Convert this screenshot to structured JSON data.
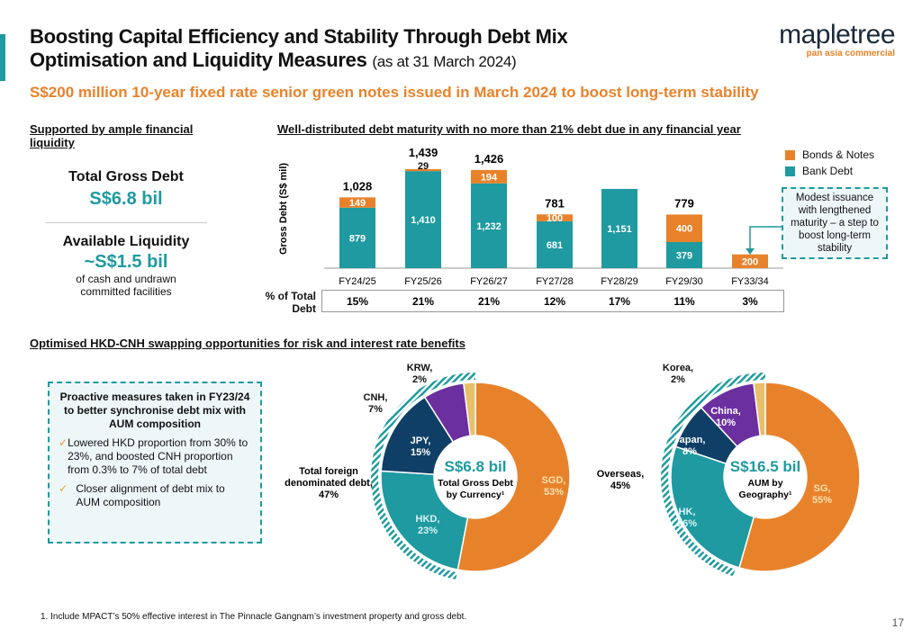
{
  "header": {
    "title_line1": "Boosting Capital Efficiency and Stability Through Debt Mix",
    "title_line2": "Optimisation and Liquidity Measures",
    "title_date": "(as at 31 March 2024)",
    "headline": "S$200 million 10-year fixed rate senior green notes issued in March 2024 to boost long-term stability"
  },
  "logo": {
    "name": "mapletree",
    "tagline": "pan asia commercial"
  },
  "liquidity": {
    "heading": "Supported by ample financial liquidity",
    "debt_label": "Total Gross Debt",
    "debt_value": "S$6.8 bil",
    "liq_label": "Available Liquidity",
    "liq_value": "~S$1.5 bil",
    "liq_note": "of cash and undrawn committed facilities"
  },
  "maturity": {
    "heading": "Well-distributed debt maturity with no more than 21% debt due in any financial year",
    "pct_label": "% of Total Debt",
    "callout": "Modest issuance with lengthened maturity – a step to boost long-term stability"
  },
  "swap": {
    "heading": "Optimised HKD-CNH swapping opportunities for risk and interest rate benefits",
    "box_title": "Proactive measures taken in FY23/24 to better synchronise debt mix with AUM composition",
    "bullets": [
      "Lowered HKD proportion from 30% to 23%, and boosted CNH proportion from 0.3% to 7% of total debt",
      "Closer alignment of debt mix to AUM composition"
    ],
    "check_icon": "checkmark-icon"
  },
  "colors": {
    "teal": "#1e9aa0",
    "orange": "#e8822a",
    "navy": "#0f3f66",
    "purple": "#6b2fa0",
    "sand": "#e8c06a"
  },
  "chart_data": [
    {
      "type": "bar",
      "stacked": true,
      "ylabel": "Gross Debt (S$ mil)",
      "legend_position": "top-right",
      "categories": [
        "FY24/25",
        "FY25/26",
        "FY26/27",
        "FY27/28",
        "FY28/29",
        "FY29/30",
        "FY33/34"
      ],
      "series": [
        {
          "name": "Bank Debt",
          "color": "#1e9aa0",
          "values": [
            879,
            1410,
            1232,
            681,
            1151,
            379,
            0
          ]
        },
        {
          "name": "Bonds & Notes",
          "color": "#e8822a",
          "values": [
            149,
            29,
            194,
            100,
            0,
            400,
            200
          ]
        }
      ],
      "totals": [
        "1,028",
        "1,439",
        "1,426",
        "781",
        "",
        "779",
        ""
      ],
      "bank_labels": [
        "879",
        "1,410",
        "1,232",
        "681",
        "1,151",
        "379",
        ""
      ],
      "bond_labels": [
        "149",
        "29",
        "194",
        "100",
        "",
        "400",
        "200"
      ],
      "pct_of_total": [
        "15%",
        "21%",
        "21%",
        "12%",
        "17%",
        "11%",
        "3%"
      ]
    },
    {
      "type": "pie",
      "donut": true,
      "center_value": "S$6.8 bil",
      "center_label": "Total Gross Debt by Currency¹",
      "slices": [
        {
          "label": "SGD, 53%",
          "value": 53,
          "color": "#e8822a"
        },
        {
          "label": "HKD, 23%",
          "value": 23,
          "color": "#1e9aa0"
        },
        {
          "label": "JPY, 15%",
          "value": 15,
          "color": "#0f3f66"
        },
        {
          "label": "CNH, 7%",
          "value": 7,
          "color": "#6b2fa0"
        },
        {
          "label": "KRW, 2%",
          "value": 2,
          "color": "#e8c06a"
        }
      ],
      "group_label": "Total foreign denominated debt, 47%",
      "group_value": 47
    },
    {
      "type": "pie",
      "donut": true,
      "center_value": "S$16.5 bil",
      "center_label": "AUM by Geography¹",
      "slices": [
        {
          "label": "SG, 55%",
          "value": 55,
          "color": "#e8822a"
        },
        {
          "label": "HK, 26%",
          "value": 26,
          "color": "#1e9aa0"
        },
        {
          "label": "Japan, 8%",
          "value": 8,
          "color": "#0f3f66"
        },
        {
          "label": "China, 10%",
          "value": 10,
          "color": "#6b2fa0"
        },
        {
          "label": "Korea, 2%",
          "value": 2,
          "color": "#e8c06a"
        }
      ],
      "group_label": "Overseas, 45%",
      "group_value": 45
    }
  ],
  "footnote": "1.    Include MPACT’s 50% effective interest in The Pinnacle Gangnam’s investment property and gross debt.",
  "page_number": "17"
}
